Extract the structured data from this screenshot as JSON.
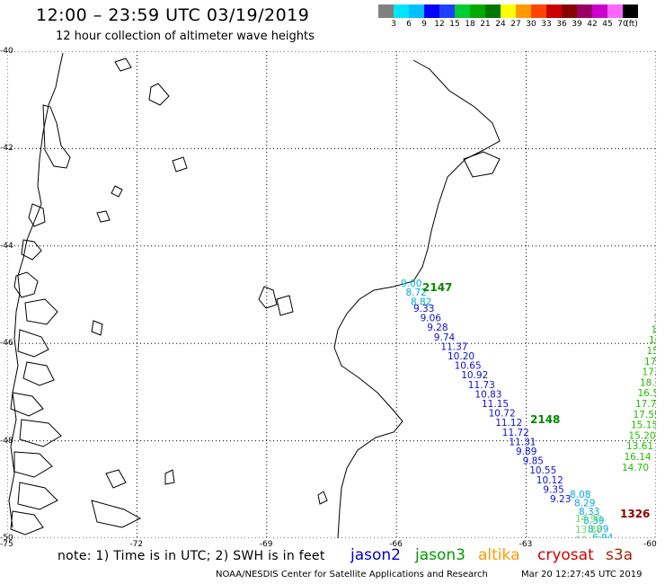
{
  "header": {
    "title": "12:00 – 23:59 UTC 03/19/2019",
    "subtitle": "12 hour collection of altimeter wave heights"
  },
  "colorbar": {
    "swatches": [
      "#808080",
      "#00e5ff",
      "#00bfff",
      "#0000ff",
      "#2040ff",
      "#00cc33",
      "#00aa00",
      "#007700",
      "#ffff00",
      "#ff9900",
      "#ff4400",
      "#cc0000",
      "#880000",
      "#990066",
      "#cc00cc",
      "#ff66ff",
      "#000000"
    ],
    "labels": [
      "3",
      "6",
      "9",
      "12",
      "15",
      "18",
      "21",
      "24",
      "27",
      "30",
      "33",
      "36",
      "39",
      "42",
      "45",
      "70",
      "(ft)"
    ]
  },
  "axes": {
    "lat_labels": [
      "-40",
      "-42",
      "-44",
      "-46",
      "-48",
      "-50"
    ],
    "lon_labels": [
      "-75",
      "-72",
      "-69",
      "-66",
      "-63",
      "-60"
    ]
  },
  "passes": [
    {
      "label": "2147",
      "color": "#008800"
    },
    {
      "label": "2148",
      "color": "#008800"
    },
    {
      "label": "1326",
      "color": "#880000"
    }
  ],
  "tracks": [
    {
      "color": "#00aadd",
      "values": [
        "9.00",
        "8.72",
        "8.82"
      ]
    },
    {
      "color": "#1010cc",
      "values": [
        "9.33",
        "9.06",
        "9.28",
        "9.74",
        "11.37",
        "10.20",
        "10.65",
        "10.92",
        "11.73",
        "10.83",
        "11.15",
        "10.72",
        "11.12",
        "11.72",
        "11.31",
        "9.89",
        "9.85",
        "10.55",
        "10.12",
        "9.35",
        "9.23"
      ]
    },
    {
      "color": "#00aadd",
      "values": [
        "8.08",
        "8.29",
        "8.33",
        "8.39",
        "8.09",
        "6.94"
      ]
    },
    {
      "color": "#66dd66",
      "values": [
        "14.90",
        "13.88",
        "13.48"
      ]
    },
    {
      "color": "#22bb00",
      "values": [
        "1",
        "17",
        "19.",
        "18.0",
        "16.8",
        "15.24",
        "17.27",
        "17.03",
        "18.63",
        "16.55",
        "17.72",
        "17.55",
        "15.15",
        "15.20",
        "13.61",
        "16.14",
        "14.70"
      ]
    }
  ],
  "footer": {
    "note": "note:  1) Time is in UTC;  2) SWH is in feet",
    "satellites": [
      {
        "name": "jason2",
        "color": "#0000cc"
      },
      {
        "name": "jason3",
        "color": "#009900"
      },
      {
        "name": "altika",
        "color": "#ff9900"
      },
      {
        "name": "cryosat",
        "color": "#cc0000"
      },
      {
        "name": "s3a",
        "color": "#aa2200"
      }
    ],
    "credit": "NOAA/NESDIS Center for Satellite Applications and Research",
    "timestamp": "Mar 20 12:27:45 UTC 2019"
  }
}
